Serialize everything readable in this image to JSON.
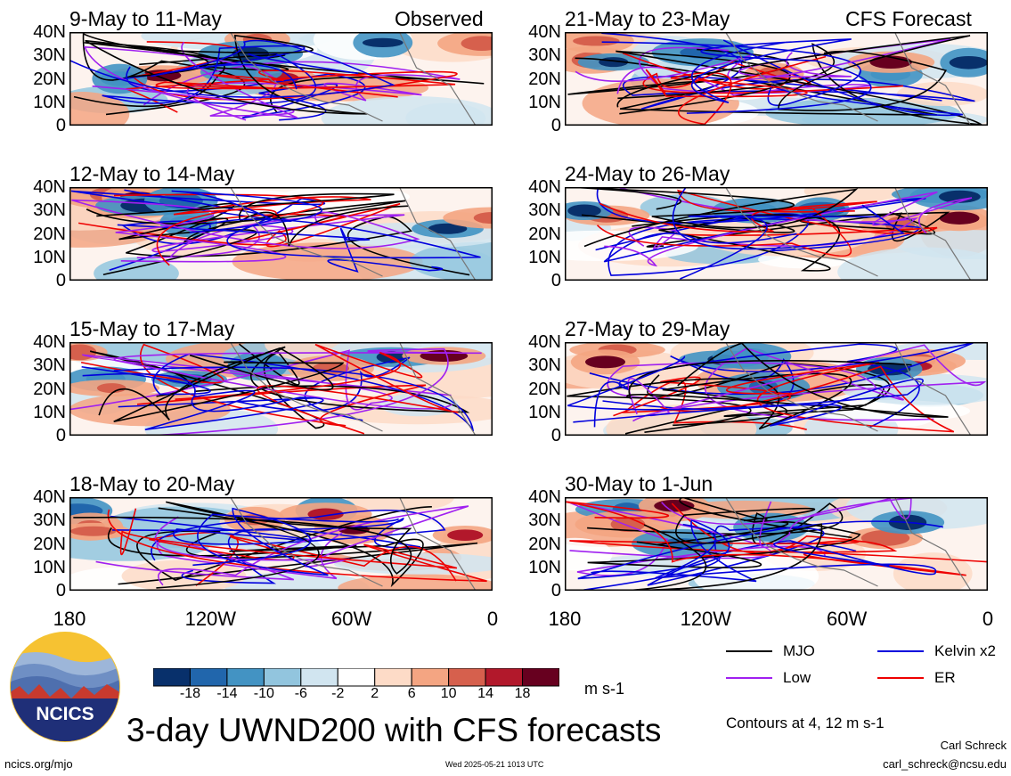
{
  "chart_data": {
    "type": "heatmap",
    "title": "3-day UWND200 with CFS forecasts",
    "columns": [
      "Observed",
      "CFS Forecast"
    ],
    "panels": [
      {
        "col": 0,
        "row": 0,
        "period": "9-May to 11-May"
      },
      {
        "col": 0,
        "row": 1,
        "period": "12-May to 14-May"
      },
      {
        "col": 0,
        "row": 2,
        "period": "15-May to 17-May"
      },
      {
        "col": 0,
        "row": 3,
        "period": "18-May to 20-May"
      },
      {
        "col": 1,
        "row": 0,
        "period": "21-May to 23-May"
      },
      {
        "col": 1,
        "row": 1,
        "period": "24-May to 26-May"
      },
      {
        "col": 1,
        "row": 2,
        "period": "27-May to 29-May"
      },
      {
        "col": 1,
        "row": 3,
        "period": "30-May to 1-Jun"
      }
    ],
    "y_ticks": [
      "40N",
      "30N",
      "20N",
      "10N",
      "0"
    ],
    "x_ticks": [
      "180",
      "120W",
      "60W",
      "0"
    ],
    "ylim": [
      0,
      40
    ],
    "xlim": [
      -180,
      0
    ],
    "colorbar": {
      "levels": [
        "-18",
        "-14",
        "-10",
        "-6",
        "-2",
        "2",
        "6",
        "10",
        "14",
        "18"
      ],
      "units": "m s-1",
      "colors": [
        "#08306b",
        "#2166ac",
        "#4393c3",
        "#92c5de",
        "#d1e5f0",
        "#ffffff",
        "#fddbc7",
        "#f4a582",
        "#d6604d",
        "#b2182b",
        "#67001f"
      ]
    },
    "contour_legend": [
      {
        "name": "MJO",
        "color": "#000000"
      },
      {
        "name": "Kelvin x2",
        "color": "#0000dd"
      },
      {
        "name": "Low",
        "color": "#a020f0"
      },
      {
        "name": "ER",
        "color": "#ee0000"
      }
    ],
    "contour_note": "Contours at 4, 12 m s-1"
  },
  "footer": {
    "logo_text": "NCICS",
    "url": "ncics.org/mjo",
    "timestamp": "Wed 2025-05-21 1013 UTC",
    "author": "Carl Schreck",
    "email": "carl_schreck@ncsu.edu"
  }
}
